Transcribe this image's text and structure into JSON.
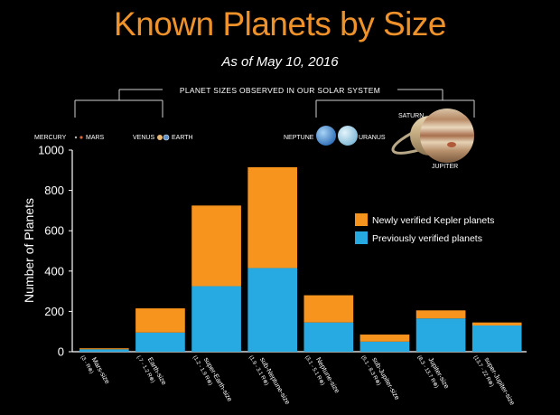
{
  "title": "Known Planets by Size",
  "subtitle": "As of May 10, 2016",
  "solar_system": {
    "label": "PLANET SIZES OBSERVED IN OUR SOLAR SYSTEM",
    "planets": {
      "mercury": "MERCURY",
      "mars": "MARS",
      "venus": "VENUS",
      "earth": "EARTH",
      "neptune": "NEPTUNE",
      "uranus": "URANUS",
      "saturn": "SATURN",
      "jupiter": "JUPITER"
    }
  },
  "colors": {
    "new": "#f7941d",
    "previous": "#27aae1",
    "axis": "#ffffff",
    "title": "#f0922a"
  },
  "chart_data": {
    "type": "bar",
    "stacked": true,
    "ylabel": "Number of Planets",
    "ylim": [
      0,
      1000
    ],
    "yticks": [
      0,
      200,
      400,
      600,
      800,
      1000
    ],
    "categories": [
      {
        "name": "Mars-size",
        "range": "(3 - R⊕)"
      },
      {
        "name": "Earth-size",
        "range": "(.7 - 1.2 R⊕)"
      },
      {
        "name": "super-Earth-size",
        "range": "(1.2 - 1.9 R⊕)"
      },
      {
        "name": "sub-Neptune-size",
        "range": "(1.9 - 3.1 R⊕)"
      },
      {
        "name": "Neptune-size",
        "range": "(3.1 - 5.1 R⊕)"
      },
      {
        "name": "sub-Jupiter-size",
        "range": "(5.1 - 8.3 R⊕)"
      },
      {
        "name": "Jupiter-size",
        "range": "(8.3 - 13.7 R⊕)"
      },
      {
        "name": "super-Jupiter-size",
        "range": "(13.7 - 22 R⊕)"
      }
    ],
    "series": [
      {
        "name": "Previously verified planets",
        "color_key": "previous",
        "values": [
          12,
          95,
          325,
          415,
          145,
          50,
          165,
          130
        ]
      },
      {
        "name": "Newly verified Kepler planets",
        "color_key": "new",
        "values": [
          5,
          120,
          400,
          500,
          135,
          35,
          40,
          15
        ]
      }
    ],
    "legend_position": "right",
    "grid": false
  }
}
